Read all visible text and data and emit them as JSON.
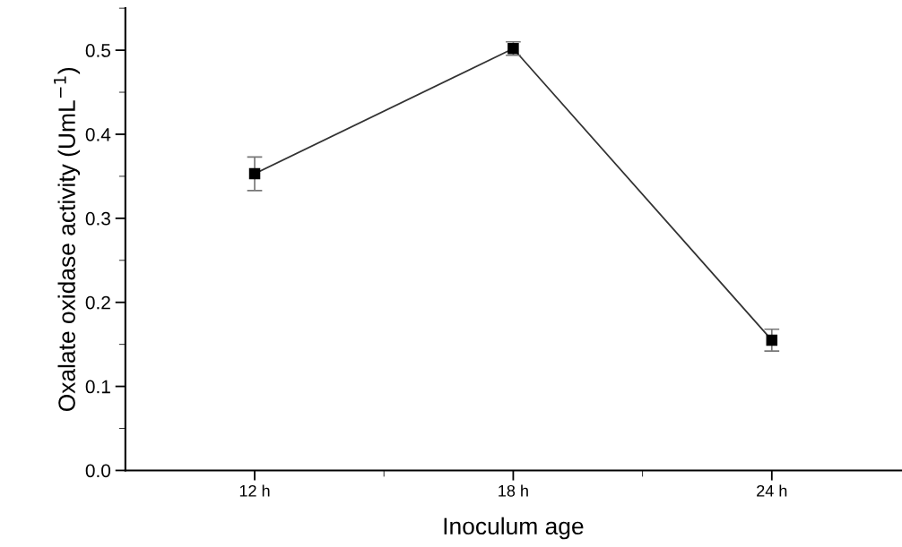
{
  "chart_data": {
    "type": "line",
    "xlabel": "Inoculum age",
    "ylabel": "Oxalate oxidase activity (UmL$^{−1}$)",
    "categories": [
      "12 h",
      "18 h",
      "24 h"
    ],
    "series": [
      {
        "color": "#000000",
        "values": [
          0.353,
          0.502,
          0.155
        ],
        "errors": [
          0.02,
          0.008,
          0.013
        ]
      }
    ],
    "marker": "square",
    "line_style": "solid",
    "ylim": [
      0,
      0.55
    ],
    "yticks": [
      {
        "value": 0,
        "label": "0.0"
      },
      0.1,
      0.2,
      0.3,
      0.4,
      0.5
    ],
    "grid": false
  }
}
